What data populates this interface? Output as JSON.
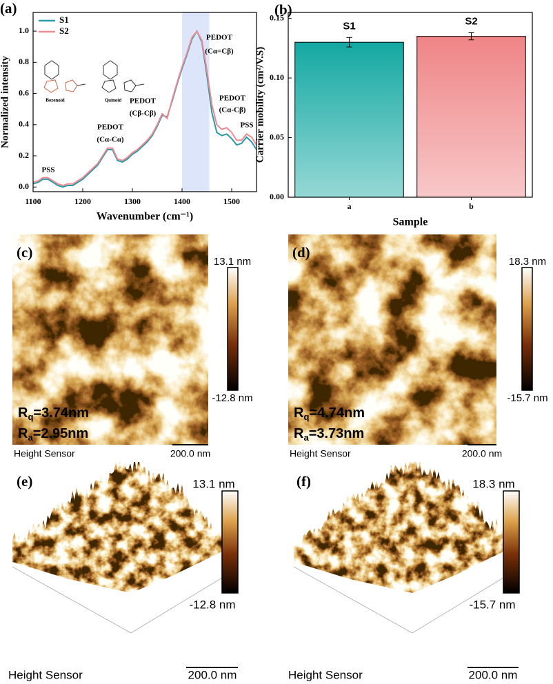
{
  "chart_data": [
    {
      "type": "line",
      "panel_label": "(a)",
      "x_label": "Wavenumber (cm⁻¹)",
      "y_label": "Normalized intensity",
      "x": [
        1100,
        1110,
        1120,
        1130,
        1140,
        1150,
        1160,
        1170,
        1180,
        1190,
        1200,
        1210,
        1220,
        1230,
        1240,
        1250,
        1260,
        1270,
        1280,
        1290,
        1300,
        1310,
        1320,
        1330,
        1340,
        1350,
        1360,
        1370,
        1380,
        1390,
        1400,
        1410,
        1420,
        1430,
        1440,
        1450,
        1460,
        1470,
        1480,
        1490,
        1500,
        1510,
        1520,
        1530,
        1540,
        1550
      ],
      "series": [
        {
          "name": "S1",
          "color": "#2a9aa8",
          "values": [
            0.02,
            0.03,
            0.05,
            0.05,
            0.03,
            0.01,
            0.0,
            0.01,
            0.01,
            0.03,
            0.05,
            0.08,
            0.11,
            0.14,
            0.19,
            0.24,
            0.24,
            0.17,
            0.16,
            0.18,
            0.21,
            0.23,
            0.26,
            0.29,
            0.33,
            0.39,
            0.46,
            0.45,
            0.55,
            0.66,
            0.76,
            0.85,
            0.95,
            1.0,
            0.93,
            0.72,
            0.48,
            0.35,
            0.33,
            0.34,
            0.31,
            0.27,
            0.28,
            0.32,
            0.29,
            0.24
          ]
        },
        {
          "name": "S2",
          "color": "#ee8a92",
          "values": [
            0.03,
            0.04,
            0.06,
            0.06,
            0.04,
            0.02,
            0.01,
            0.02,
            0.02,
            0.04,
            0.06,
            0.09,
            0.12,
            0.15,
            0.2,
            0.25,
            0.25,
            0.18,
            0.17,
            0.19,
            0.22,
            0.24,
            0.27,
            0.3,
            0.34,
            0.4,
            0.47,
            0.44,
            0.56,
            0.67,
            0.77,
            0.86,
            0.96,
            1.0,
            0.94,
            0.75,
            0.53,
            0.4,
            0.37,
            0.38,
            0.35,
            0.3,
            0.3,
            0.34,
            0.32,
            0.27
          ]
        }
      ],
      "xlim": [
        1100,
        1550
      ],
      "xticks": [
        1100,
        1200,
        1300,
        1400,
        1500
      ],
      "ylim": [
        -0.03,
        1.12
      ],
      "yticks": [
        {
          "value": 0,
          "label": "0.0"
        },
        0.2,
        0.4,
        0.6,
        0.8,
        {
          "value": 1,
          "label": "1.0"
        }
      ],
      "legend": "upper left",
      "grid": false,
      "shaded_region": [
        1400,
        1455
      ],
      "shade_color": "#dde5fa",
      "annotations": [
        "PSS",
        "PEDOT",
        "(Cα-Cα)",
        "PEDOT",
        "(Cβ-Cβ)",
        "PEDOT",
        "(Cα=Cβ)",
        "PEDOT",
        "(Cα-Cβ)",
        "PSS"
      ],
      "structure_labels": [
        "Bezenoid",
        "Quinoid"
      ]
    },
    {
      "type": "bar",
      "panel_label": "(b)",
      "x_label": "Sample",
      "y_label": "Carrier mobility (cm²/V.S)",
      "categories": [
        "a",
        "b"
      ],
      "values": [
        0.13,
        0.135
      ],
      "errors": [
        0.004,
        0.003
      ],
      "bar_labels": [
        "S1",
        "S2"
      ],
      "colors": [
        "#14a8a2",
        "#ef8486"
      ],
      "label_colors": [
        "#1aa0a8",
        "#c0504d"
      ],
      "ylim": [
        0,
        0.155
      ],
      "yticks": [
        {
          "value": 0,
          "label": "0.00"
        },
        0.05,
        {
          "value": 0.1,
          "label": "0.10"
        },
        0.15
      ],
      "grid": false
    }
  ],
  "afm_panels": [
    {
      "label": "(c)",
      "rq": [
        "R",
        "q",
        "=3.74nm"
      ],
      "ra": [
        "R",
        "a",
        "=2.95nm"
      ],
      "scale_max": "13.1 nm",
      "scale_min": "-12.8 nm",
      "sensor": "Height Sensor",
      "scalebar": "200.0 nm"
    },
    {
      "label": "(d)",
      "rq": [
        "R",
        "q",
        "=4.74nm"
      ],
      "ra": [
        "R",
        "a",
        "=3.73nm"
      ],
      "scale_max": "18.3 nm",
      "scale_min": "-15.7 nm",
      "sensor": "Height Sensor",
      "scalebar": "200.0 nm"
    },
    {
      "label": "(e)",
      "scale_max": "13.1 nm",
      "scale_min": "-12.8 nm",
      "sensor": "Height Sensor",
      "scalebar": "200.0 nm"
    },
    {
      "label": "(f)",
      "scale_max": "18.3 nm",
      "scale_min": "-15.7 nm",
      "sensor": "Height Sensor",
      "scalebar": "200.0 nm"
    }
  ]
}
